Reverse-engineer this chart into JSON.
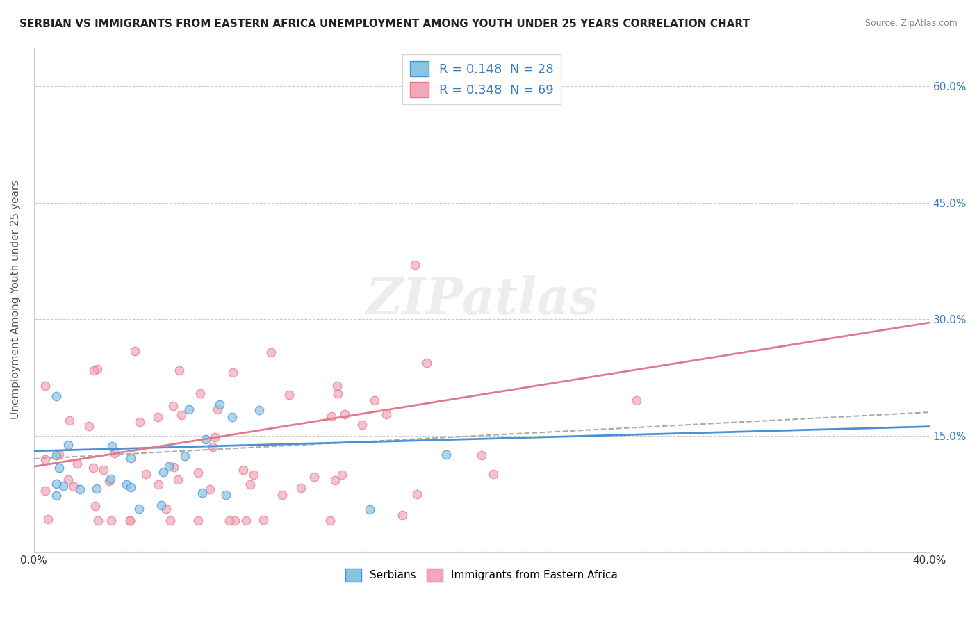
{
  "title": "SERBIAN VS IMMIGRANTS FROM EASTERN AFRICA UNEMPLOYMENT AMONG YOUTH UNDER 25 YEARS CORRELATION CHART",
  "source": "Source: ZipAtlas.com",
  "ylabel": "Unemployment Among Youth under 25 years",
  "xlim": [
    0.0,
    0.4
  ],
  "ylim": [
    0.0,
    0.65
  ],
  "legend_labels": [
    "Serbians",
    "Immigrants from Eastern Africa"
  ],
  "serbian_R": 0.148,
  "serbian_N": 28,
  "eastern_africa_R": 0.348,
  "eastern_africa_N": 69,
  "color_serbian": "#89c4e1",
  "color_eastern_africa": "#f4a7b9",
  "color_serbian_line": "#4a90d9",
  "color_eastern_africa_line": "#e07a8a",
  "color_trendline_dashed": "#aaaaaa",
  "watermark": "ZIPatlas",
  "background_color": "#ffffff"
}
